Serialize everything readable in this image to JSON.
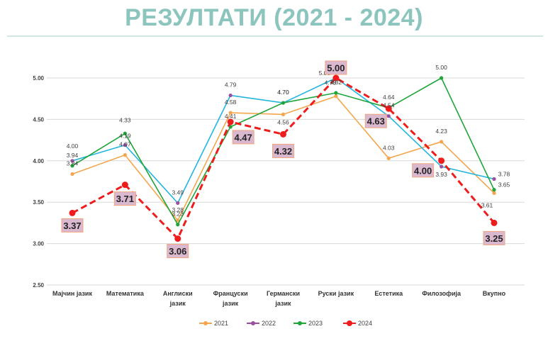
{
  "page": {
    "title": "РЕЗУЛТАТИ (2021 - 2024)"
  },
  "chart_data": {
    "type": "line",
    "title": "РЕЗУЛТАТИ (2021 - 2024)",
    "categories": [
      [
        "Мајчин јазик"
      ],
      [
        "Математика"
      ],
      [
        "Англиски",
        "јазик"
      ],
      [
        "Француски",
        "јазик"
      ],
      [
        "Германски",
        "јазик"
      ],
      [
        "Руски јазик"
      ],
      [
        "Естетика"
      ],
      [
        "Филозофија"
      ],
      [
        "Вкупно"
      ]
    ],
    "y_ticks": [
      "2.50",
      "3.00",
      "3.50",
      "4.00",
      "4.50",
      "5.00"
    ],
    "ylim": [
      2.5,
      5.0
    ],
    "grid": true,
    "legend_position": "bottom",
    "series": [
      {
        "name": "2021",
        "color": "#f4a64f",
        "values": [
          3.84,
          4.07,
          3.28,
          4.58,
          4.56,
          4.78,
          4.03,
          4.23,
          3.61
        ]
      },
      {
        "name": "2022",
        "color": "#9b4f9f",
        "values": [
          4.0,
          4.19,
          3.49,
          4.79,
          4.7,
          5.0,
          4.54,
          3.93,
          3.78
        ]
      },
      {
        "name": "2023",
        "color": "#1fa53a",
        "values": [
          3.94,
          4.33,
          3.23,
          4.41,
          4.7,
          4.82,
          4.64,
          5.0,
          3.65
        ]
      },
      {
        "name": "2024",
        "color": "#ee1c1c",
        "values": [
          3.37,
          3.71,
          3.06,
          4.47,
          4.32,
          5.0,
          4.63,
          4.0,
          3.25
        ]
      }
    ],
    "highlight_series": "2024"
  }
}
